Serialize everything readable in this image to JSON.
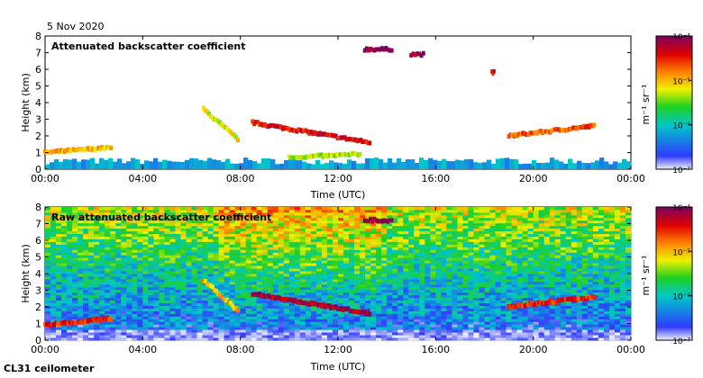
{
  "date_label": "5 Nov 2020",
  "footer_label": "CL31 ceilometer",
  "chart_data": [
    {
      "type": "heatmap",
      "title": "Attenuated backscatter coefficient",
      "xlabel": "Time (UTC)",
      "ylabel": "Height (km)",
      "xlim": [
        0,
        24
      ],
      "ylim": [
        0,
        8
      ],
      "x_ticks": [
        "00:00",
        "04:00",
        "08:00",
        "12:00",
        "16:00",
        "20:00",
        "00:00"
      ],
      "y_ticks": [
        "0",
        "1",
        "2",
        "3",
        "4",
        "5",
        "6",
        "7",
        "8"
      ],
      "colorbar": {
        "label": "m⁻¹ sr⁻¹",
        "ticks": [
          "10⁻⁷",
          "10⁻⁶",
          "10⁻⁵",
          "10⁻⁴"
        ],
        "range_log10": [
          -7,
          -4
        ]
      },
      "features": [
        {
          "name": "boundary-layer",
          "x": [
            0,
            24
          ],
          "height_top": 0.5,
          "log_value": -6.2
        },
        {
          "name": "low-cloud",
          "x": [
            0,
            2.7
          ],
          "height": [
            1.0,
            1.3
          ],
          "log_value": -5.0
        },
        {
          "name": "descending-layer",
          "x": [
            6.5,
            7.9
          ],
          "height": [
            3.6,
            1.8
          ],
          "log_value": -5.2
        },
        {
          "name": "cloud-layer",
          "x": [
            8.5,
            13.3
          ],
          "height": [
            2.8,
            1.6
          ],
          "log_value": -4.4
        },
        {
          "name": "low-cloud",
          "x": [
            10.0,
            12.9
          ],
          "height": [
            0.7,
            0.9
          ],
          "log_value": -5.3
        },
        {
          "name": "high-cloud",
          "x": [
            13.1,
            14.2
          ],
          "height": [
            7.2,
            7.2
          ],
          "log_value": -4.1
        },
        {
          "name": "high-cloud",
          "x": [
            15.0,
            15.5
          ],
          "height": [
            6.9,
            6.9
          ],
          "log_value": -4.1
        },
        {
          "name": "small-cloud",
          "x": [
            18.3,
            18.4
          ],
          "height": [
            5.8,
            5.8
          ],
          "log_value": -4.3
        },
        {
          "name": "cloud-layer",
          "x": [
            19.0,
            22.5
          ],
          "height": [
            2.0,
            2.6
          ],
          "log_value": -4.7
        }
      ]
    },
    {
      "type": "heatmap",
      "title": "Raw attenuated backscatter coefficient",
      "xlabel": "Time (UTC)",
      "ylabel": "Height (km)",
      "xlim": [
        0,
        24
      ],
      "ylim": [
        0,
        8
      ],
      "x_ticks": [
        "00:00",
        "04:00",
        "08:00",
        "12:00",
        "16:00",
        "20:00",
        "00:00"
      ],
      "y_ticks": [
        "0",
        "1",
        "2",
        "3",
        "4",
        "5",
        "6",
        "7",
        "8"
      ],
      "colorbar": {
        "label": "m⁻¹ sr⁻¹",
        "ticks": [
          "10⁻⁷",
          "10⁻⁶",
          "10⁻⁵",
          "10⁻⁴"
        ],
        "range_log10": [
          -7,
          -4
        ]
      },
      "features": [
        {
          "name": "noise-background",
          "x": [
            0,
            24
          ],
          "height": [
            0,
            8
          ],
          "log_value": -6.0
        },
        {
          "name": "low-cloud",
          "x": [
            0,
            2.7
          ],
          "height": [
            0.9,
            1.3
          ],
          "log_value": -4.5
        },
        {
          "name": "descending-layer",
          "x": [
            6.5,
            7.9
          ],
          "height": [
            3.6,
            1.8
          ],
          "log_value": -5.0
        },
        {
          "name": "cloud-layer",
          "x": [
            8.5,
            13.3
          ],
          "height": [
            2.8,
            1.6
          ],
          "log_value": -4.2
        },
        {
          "name": "high-cloud",
          "x": [
            13.1,
            14.2
          ],
          "height": [
            7.2,
            7.2
          ],
          "log_value": -4.1
        },
        {
          "name": "cloud-layer",
          "x": [
            19.0,
            22.5
          ],
          "height": [
            2.0,
            2.6
          ],
          "log_value": -4.5
        }
      ]
    }
  ]
}
